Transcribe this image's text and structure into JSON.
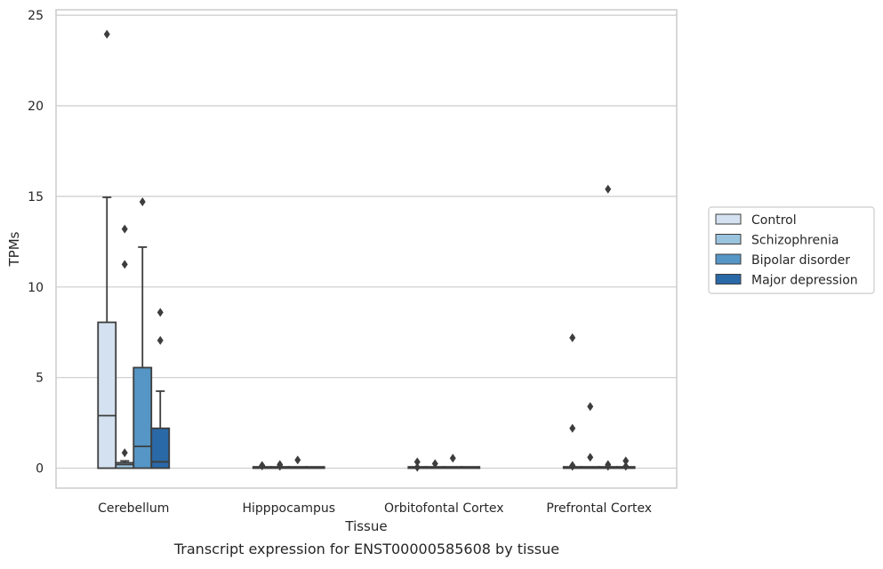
{
  "caption": "Transcript expression for ENST00000585608 by tissue",
  "chart_data": {
    "type": "box",
    "xlabel": "Tissue",
    "ylabel": "TPMs",
    "ylim": [
      -1.1,
      25.3
    ],
    "yticks": [
      0,
      5,
      10,
      15,
      20,
      25
    ],
    "grid": "horizontal",
    "legend_placement": "right",
    "categories": [
      "Cerebellum",
      "Hipppocampus",
      "Orbitofontal Cortex",
      "Prefrontal Cortex"
    ],
    "series": [
      {
        "name": "Control",
        "color": "#d4e1f0",
        "boxes": [
          {
            "q1": 0,
            "median": 2.9,
            "q3": 8.05,
            "whisker_low": 0,
            "whisker_high": 14.95,
            "outliers": [
              23.95
            ]
          },
          {
            "q1": 0,
            "median": 0,
            "q3": 0.02,
            "whisker_low": 0,
            "whisker_high": 0.02,
            "outliers": [
              0.15,
              0.12
            ]
          },
          {
            "q1": 0,
            "median": 0,
            "q3": 0.02,
            "whisker_low": 0,
            "whisker_high": 0.02,
            "outliers": [
              0.35,
              0.05
            ]
          },
          {
            "q1": 0,
            "median": 0,
            "q3": 0.02,
            "whisker_low": 0,
            "whisker_high": 0.02,
            "outliers": [
              7.2,
              2.2,
              0.15,
              0.1
            ]
          }
        ]
      },
      {
        "name": "Schizophrenia",
        "color": "#9ac3de",
        "boxes": [
          {
            "q1": 0,
            "median": 0.2,
            "q3": 0.3,
            "whisker_low": 0,
            "whisker_high": 0.4,
            "outliers": [
              13.2,
              11.25,
              0.85
            ]
          },
          {
            "q1": 0,
            "median": 0,
            "q3": 0.02,
            "whisker_low": 0,
            "whisker_high": 0.02,
            "outliers": [
              0.2,
              0.1
            ]
          },
          {
            "q1": 0,
            "median": 0,
            "q3": 0.02,
            "whisker_low": 0,
            "whisker_high": 0.02,
            "outliers": [
              0.25
            ]
          },
          {
            "q1": 0,
            "median": 0,
            "q3": 0.02,
            "whisker_low": 0,
            "whisker_high": 0.02,
            "outliers": [
              3.4,
              0.6
            ]
          }
        ]
      },
      {
        "name": "Bipolar disorder",
        "color": "#5596c6",
        "boxes": [
          {
            "q1": 0,
            "median": 1.2,
            "q3": 5.55,
            "whisker_low": 0,
            "whisker_high": 12.2,
            "outliers": [
              14.7
            ]
          },
          {
            "q1": 0,
            "median": 0,
            "q3": 0.02,
            "whisker_low": 0,
            "whisker_high": 0.02,
            "outliers": [
              0.45
            ]
          },
          {
            "q1": 0,
            "median": 0,
            "q3": 0.02,
            "whisker_low": 0,
            "whisker_high": 0.02,
            "outliers": [
              0.55
            ]
          },
          {
            "q1": 0,
            "median": 0,
            "q3": 0.02,
            "whisker_low": 0,
            "whisker_high": 0.02,
            "outliers": [
              15.4,
              0.2,
              0.1
            ]
          }
        ]
      },
      {
        "name": "Major depression",
        "color": "#2a69a8",
        "boxes": [
          {
            "q1": 0,
            "median": 0.35,
            "q3": 2.2,
            "whisker_low": 0,
            "whisker_high": 4.25,
            "outliers": [
              8.6,
              7.05
            ]
          },
          {
            "q1": 0,
            "median": 0,
            "q3": 0.02,
            "whisker_low": 0,
            "whisker_high": 0.02,
            "outliers": []
          },
          {
            "q1": 0,
            "median": 0,
            "q3": 0.02,
            "whisker_low": 0,
            "whisker_high": 0.02,
            "outliers": []
          },
          {
            "q1": 0,
            "median": 0,
            "q3": 0.02,
            "whisker_low": 0,
            "whisker_high": 0.02,
            "outliers": [
              0.4,
              0.1
            ]
          }
        ]
      }
    ]
  }
}
